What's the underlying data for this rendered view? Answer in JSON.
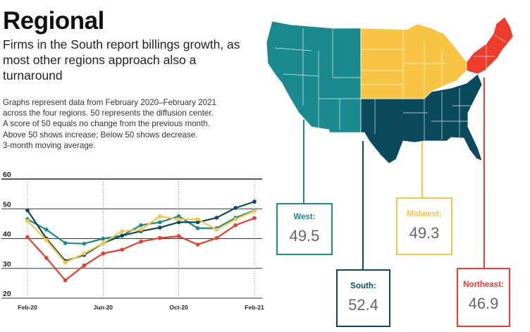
{
  "header": {
    "title": "Regional",
    "subtitle": "Firms in the South report billings growth, as most other regions approach also a turnaround",
    "description_lines": [
      "Graphs represent data from February 2020–February 2021",
      "across the four regions. 50 represents the diffusion center.",
      "A score of 50 equals no change from the previous month.",
      "Above 50 shows increase; Below 50 shows decrease.",
      "3-month moving average."
    ]
  },
  "colors": {
    "west": "#1b8a8f",
    "south": "#0b4a5c",
    "midwest": "#f7c443",
    "northeast": "#ee3b2b"
  },
  "chart_data": {
    "type": "line",
    "x": [
      "Feb-20",
      "Mar-20",
      "Apr-20",
      "May-20",
      "Jun-20",
      "Jul-20",
      "Aug-20",
      "Sep-20",
      "Oct-20",
      "Nov-20",
      "Dec-20",
      "Jan-21",
      "Feb-21"
    ],
    "tick_labels": [
      "Feb-20",
      "Jun-20",
      "Oct-20",
      "Feb-21"
    ],
    "yticks": [
      20,
      30,
      40,
      50,
      60
    ],
    "ylim": [
      20,
      60
    ],
    "grid": true,
    "series": [
      {
        "name": "West",
        "color": "#1b8a8f",
        "values": [
          46.5,
          43,
          38.5,
          38.3,
          40,
          41,
          44.5,
          45.5,
          47.5,
          43.5,
          43.5,
          47,
          49.5
        ]
      },
      {
        "name": "South",
        "color": "#0b4a5c",
        "values": [
          49.5,
          40,
          32.5,
          34.5,
          38.5,
          41,
          42.5,
          43.7,
          45.5,
          45.5,
          47,
          50.3,
          52.4
        ]
      },
      {
        "name": "Midwest",
        "color": "#f7c443",
        "values": [
          46,
          39.5,
          32,
          35,
          38.5,
          42.5,
          43,
          47.5,
          46.5,
          46.5,
          43,
          46.5,
          49.3
        ]
      },
      {
        "name": "Northeast",
        "color": "#ee3b2b",
        "values": [
          40.5,
          33.5,
          26,
          31,
          35,
          36.3,
          39,
          40.2,
          40.8,
          38,
          40.2,
          44.5,
          46.9
        ]
      }
    ]
  },
  "regions": [
    {
      "key": "west",
      "label": "West:",
      "value": "49.5"
    },
    {
      "key": "south",
      "label": "South:",
      "value": "52.4"
    },
    {
      "key": "midwest",
      "label": "Midwest:",
      "value": "49.3"
    },
    {
      "key": "northeast",
      "label": "Northeast:",
      "value": "46.9"
    }
  ]
}
